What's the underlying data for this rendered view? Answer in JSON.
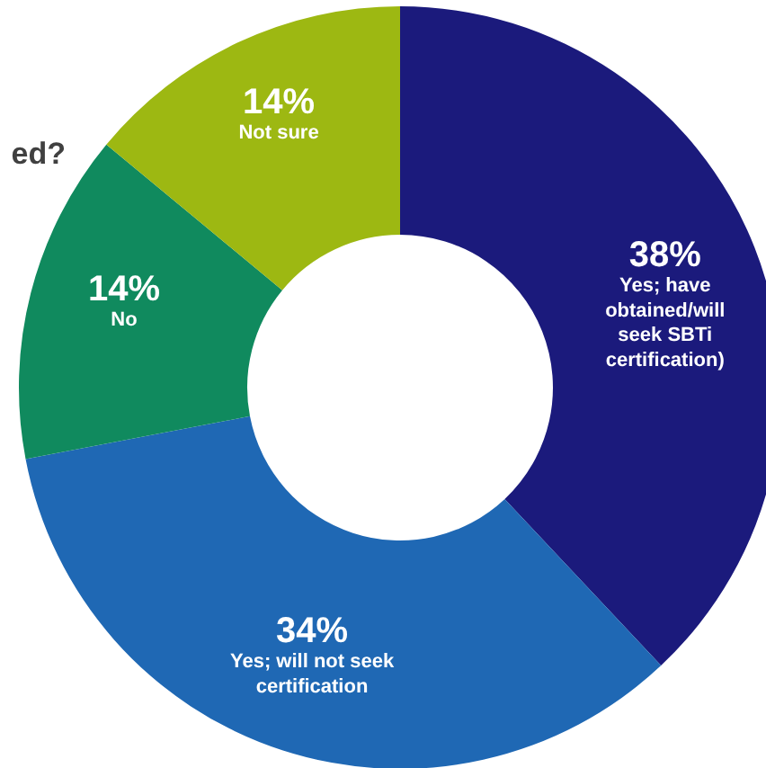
{
  "chart_data": {
    "type": "donut",
    "title": "ed?",
    "categories": [
      "Yes; have\nobtained/will\nseek SBTi\ncertification)",
      "Yes; will not seek\ncertification",
      "No",
      "Not sure"
    ],
    "values": [
      38,
      34,
      14,
      14
    ],
    "colors": [
      "#1b1a7c",
      "#1f68b4",
      "#108a5e",
      "#9db812"
    ],
    "value_labels": [
      "38%",
      "34%",
      "14%",
      "14%"
    ]
  }
}
